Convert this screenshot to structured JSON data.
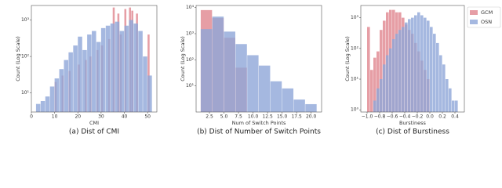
{
  "chart_data": [
    {
      "type": "histogram",
      "caption": "(a) Dist of CMI",
      "xlabel": "CMI",
      "ylabel": "Count (Log Scale)",
      "log_y": true,
      "xlim": [
        0,
        54
      ],
      "xticks": [
        0,
        10,
        20,
        30,
        40,
        50
      ],
      "ylim": [
        3,
        2500
      ],
      "yticks": [
        {
          "value": 10,
          "label": "10¹"
        },
        {
          "value": 100,
          "label": "10²"
        },
        {
          "value": 1000,
          "label": "10³"
        }
      ],
      "series": [
        {
          "name": "GCM",
          "color": "#e0868e",
          "bins": [
            9,
            10,
            11,
            12,
            13,
            14,
            15,
            16,
            17,
            18,
            19,
            20,
            21,
            22,
            23,
            24,
            25,
            26,
            27,
            28,
            29,
            30,
            31,
            32,
            33,
            34,
            35,
            36,
            37,
            38,
            39,
            40,
            41,
            42,
            43,
            44,
            45,
            46,
            47,
            48,
            49,
            50,
            51,
            52
          ],
          "values": [
            0,
            20,
            0,
            0,
            30,
            0,
            0,
            40,
            0,
            0,
            0,
            60,
            0,
            0,
            80,
            0,
            100,
            0,
            0,
            150,
            0,
            200,
            0,
            0,
            300,
            0,
            2200,
            0,
            1500,
            400,
            0,
            2000,
            0,
            2200,
            1800,
            0,
            1500,
            0,
            0,
            0,
            0,
            400,
            0
          ]
        },
        {
          "name": "OSN",
          "color": "#8fa6d8",
          "bins": [
            2,
            4,
            6,
            8,
            10,
            12,
            14,
            16,
            18,
            20,
            22,
            24,
            26,
            28,
            30,
            32,
            34,
            36,
            38,
            40,
            42,
            44,
            46,
            48,
            50,
            52
          ],
          "values": [
            5,
            6,
            8,
            15,
            25,
            45,
            80,
            130,
            200,
            350,
            150,
            400,
            500,
            250,
            600,
            700,
            800,
            900,
            500,
            700,
            1000,
            800,
            500,
            100,
            30
          ]
        }
      ]
    },
    {
      "type": "histogram",
      "caption": "(b) Dist of Number of Switch Points",
      "xlabel": "Num of Switch Points",
      "ylabel": "Count (Log Scale)",
      "log_y": true,
      "xlim": [
        0.2,
        21.8
      ],
      "xticks": [
        2.5,
        {
          "value": 5,
          "label": "5.0"
        },
        7.5,
        {
          "value": 10,
          "label": "10.0"
        },
        12.5,
        {
          "value": 15,
          "label": "15.0"
        },
        17.5,
        {
          "value": 20,
          "label": "20.0"
        }
      ],
      "ylim": [
        1,
        12000
      ],
      "yticks": [
        {
          "value": 10,
          "label": "10¹"
        },
        {
          "value": 100,
          "label": "10²"
        },
        {
          "value": 1000,
          "label": "10³"
        },
        {
          "value": 10000,
          "label": "10⁴"
        }
      ],
      "series": [
        {
          "name": "GCM",
          "color": "#e0868e",
          "bins": [
            1,
            3,
            5,
            7,
            9,
            11,
            13,
            15,
            17,
            19,
            21
          ],
          "values": [
            8000,
            4000,
            700,
            50,
            0,
            0,
            0,
            0,
            0,
            0
          ]
        },
        {
          "name": "OSN",
          "color": "#8fa6d8",
          "bins": [
            1,
            3,
            5,
            7,
            9,
            11,
            13,
            15,
            17,
            19,
            21
          ],
          "values": [
            1500,
            4500,
            1200,
            400,
            150,
            60,
            15,
            8,
            3,
            2
          ]
        }
      ]
    },
    {
      "type": "histogram",
      "caption": "(c) Dist of Burstiness",
      "xlabel": "Burstiness",
      "ylabel": "Count (Log Scale)",
      "log_y": true,
      "legend": "right",
      "xlim": [
        -1.1,
        0.55
      ],
      "xticks": [
        {
          "value": -1.0,
          "label": "−1.0"
        },
        {
          "value": -0.8,
          "label": "−0.8"
        },
        {
          "value": -0.6,
          "label": "−0.6"
        },
        {
          "value": -0.4,
          "label": "−0.4"
        },
        {
          "value": -0.2,
          "label": "−0.2"
        },
        {
          "value": 0,
          "label": "0.0"
        },
        0.2,
        0.4
      ],
      "ylim": [
        0.85,
        2500
      ],
      "yticks": [
        {
          "value": 1,
          "label": "10⁰"
        },
        {
          "value": 10,
          "label": "10¹"
        },
        {
          "value": 100,
          "label": "10²"
        },
        {
          "value": 1000,
          "label": "10³"
        }
      ],
      "series": [
        {
          "name": "GCM",
          "color": "#e0868e",
          "bins": [
            -1.05,
            -1.0,
            -0.95,
            -0.9,
            -0.85,
            -0.8,
            -0.75,
            -0.7,
            -0.65,
            -0.6,
            -0.55,
            -0.5,
            -0.45,
            -0.4,
            -0.35,
            -0.3,
            -0.25,
            -0.2,
            -0.15,
            -0.1,
            -0.05,
            0,
            0.05,
            0.1,
            0.15,
            0.2,
            0.25,
            0.3,
            0.35,
            0.4,
            0.45,
            0.5
          ],
          "values": [
            0,
            500,
            20,
            50,
            80,
            400,
            800,
            1500,
            1800,
            1800,
            1500,
            1500,
            1000,
            600,
            400,
            300,
            150,
            80,
            40,
            20,
            10,
            0,
            0,
            0,
            0,
            0,
            0,
            0,
            0,
            0,
            0
          ]
        },
        {
          "name": "OSN",
          "color": "#8fa6d8",
          "bins": [
            -1.05,
            -1.0,
            -0.95,
            -0.9,
            -0.85,
            -0.8,
            -0.75,
            -0.7,
            -0.65,
            -0.6,
            -0.55,
            -0.5,
            -0.45,
            -0.4,
            -0.35,
            -0.3,
            -0.25,
            -0.2,
            -0.15,
            -0.1,
            -0.05,
            0,
            0.05,
            0.1,
            0.15,
            0.2,
            0.25,
            0.3,
            0.35,
            0.4,
            0.45,
            0.5
          ],
          "values": [
            0,
            0,
            0,
            2,
            5,
            10,
            30,
            60,
            100,
            200,
            300,
            400,
            500,
            700,
            900,
            1000,
            1200,
            1500,
            1200,
            1000,
            800,
            500,
            300,
            150,
            60,
            30,
            10,
            5,
            2,
            2,
            0
          ]
        }
      ]
    }
  ]
}
